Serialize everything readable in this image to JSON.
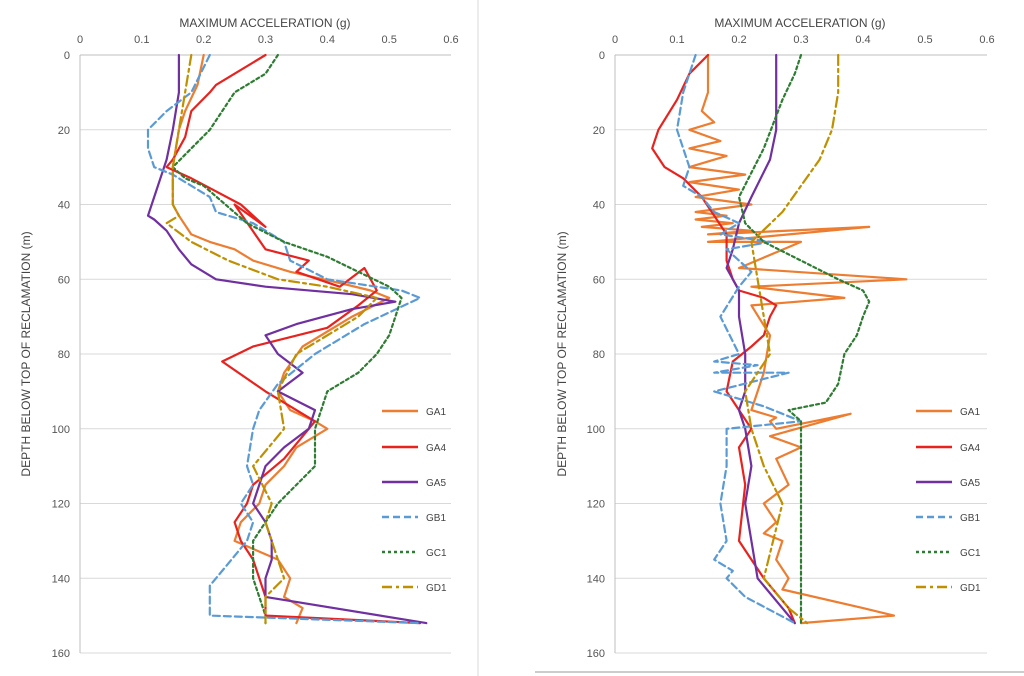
{
  "chart_data": [
    {
      "type": "line",
      "orientation": "depth-profile",
      "xlabel": "MAXIMUM ACCELERATION (g)",
      "ylabel": "DEPTH BELOW TOP OF RECLAMATION (m)",
      "xlim": [
        0,
        0.6
      ],
      "ylim": [
        0,
        160
      ],
      "y_inverted": true,
      "x_axis_position": "top",
      "grid": "horizontal",
      "xticks": [
        "0",
        "0.1",
        "0.2",
        "0.3",
        "0.4",
        "0.5",
        "0.6"
      ],
      "yticks": [
        "0",
        "20",
        "40",
        "60",
        "80",
        "100",
        "120",
        "140",
        "160"
      ],
      "legend_position": "bottom-right",
      "series": [
        {
          "name": "GA1",
          "color": "#ED7D31",
          "dash": "solid",
          "x": [
            0.2,
            0.19,
            0.17,
            0.16,
            0.15,
            0.15,
            0.16,
            0.18,
            0.21,
            0.25,
            0.28,
            0.34,
            0.42,
            0.47,
            0.5,
            0.44,
            0.36,
            0.33,
            0.32,
            0.34,
            0.38,
            0.4,
            0.35,
            0.33,
            0.3,
            0.29,
            0.26,
            0.25,
            0.32,
            0.34,
            0.33,
            0.36,
            0.35
          ],
          "y": [
            0,
            8,
            15,
            20,
            30,
            40,
            43,
            48,
            50,
            52,
            55,
            58,
            61,
            63,
            65,
            70,
            78,
            85,
            90,
            95,
            98,
            100,
            105,
            110,
            115,
            120,
            125,
            130,
            135,
            140,
            145,
            148,
            152
          ]
        },
        {
          "name": "GA4",
          "color": "#E8231F",
          "dash": "solid",
          "x": [
            0.3,
            0.25,
            0.22,
            0.21,
            0.18,
            0.17,
            0.15,
            0.14,
            0.18,
            0.26,
            0.3,
            0.25,
            0.3,
            0.37,
            0.35,
            0.42,
            0.46,
            0.48,
            0.45,
            0.4,
            0.28,
            0.23,
            0.3,
            0.38,
            0.33,
            0.28,
            0.27,
            0.25,
            0.26,
            0.28,
            0.29,
            0.3,
            0.3,
            0.55
          ],
          "y": [
            0,
            5,
            8,
            10,
            15,
            22,
            28,
            30,
            33,
            40,
            46,
            40,
            52,
            55,
            58,
            62,
            57,
            63,
            67,
            73,
            78,
            82,
            90,
            98,
            108,
            115,
            120,
            125,
            130,
            135,
            140,
            145,
            150,
            152
          ]
        },
        {
          "name": "GA5",
          "color": "#7030A0",
          "dash": "solid",
          "x": [
            0.16,
            0.16,
            0.15,
            0.14,
            0.13,
            0.12,
            0.11,
            0.12,
            0.14,
            0.16,
            0.18,
            0.22,
            0.3,
            0.44,
            0.51,
            0.44,
            0.35,
            0.3,
            0.32,
            0.36,
            0.32,
            0.38,
            0.37,
            0.33,
            0.3,
            0.28,
            0.3,
            0.31,
            0.31,
            0.3,
            0.3,
            0.56
          ],
          "y": [
            0,
            10,
            20,
            28,
            33,
            38,
            43,
            44,
            47,
            52,
            56,
            60,
            62,
            64,
            66,
            68,
            72,
            75,
            80,
            85,
            90,
            95,
            100,
            105,
            110,
            120,
            125,
            130,
            135,
            140,
            145,
            152
          ]
        },
        {
          "name": "GB1",
          "color": "#5B9BD5",
          "dash": "dash",
          "x": [
            0.21,
            0.18,
            0.14,
            0.11,
            0.11,
            0.12,
            0.15,
            0.18,
            0.21,
            0.22,
            0.28,
            0.33,
            0.34,
            0.4,
            0.52,
            0.55,
            0.46,
            0.38,
            0.32,
            0.29,
            0.28,
            0.27,
            0.28,
            0.26,
            0.28,
            0.27,
            0.22,
            0.21,
            0.21,
            0.55
          ],
          "y": [
            0,
            10,
            15,
            20,
            25,
            30,
            32,
            35,
            38,
            42,
            45,
            50,
            55,
            60,
            63,
            65,
            72,
            80,
            88,
            95,
            100,
            110,
            115,
            120,
            125,
            130,
            140,
            142,
            150,
            152
          ]
        },
        {
          "name": "GC1",
          "color": "#2E7D32",
          "dash": "dot",
          "x": [
            0.32,
            0.3,
            0.25,
            0.23,
            0.21,
            0.18,
            0.15,
            0.17,
            0.2,
            0.27,
            0.33,
            0.4,
            0.45,
            0.5,
            0.52,
            0.51,
            0.5,
            0.48,
            0.45,
            0.4,
            0.38,
            0.38,
            0.32,
            0.28,
            0.28,
            0.3,
            0.3
          ],
          "y": [
            0,
            5,
            10,
            15,
            20,
            25,
            30,
            33,
            35,
            45,
            50,
            54,
            58,
            62,
            65,
            70,
            75,
            80,
            85,
            90,
            100,
            110,
            120,
            130,
            140,
            150,
            152
          ]
        },
        {
          "name": "GD1",
          "color": "#BF9000",
          "dash": "dashdot",
          "x": [
            0.18,
            0.17,
            0.16,
            0.15,
            0.15,
            0.16,
            0.14,
            0.18,
            0.24,
            0.32,
            0.4,
            0.48,
            0.45,
            0.35,
            0.32,
            0.33,
            0.28,
            0.31,
            0.3,
            0.31,
            0.33,
            0.3,
            0.3
          ],
          "y": [
            0,
            10,
            20,
            30,
            40,
            43,
            45,
            50,
            55,
            60,
            62,
            65,
            70,
            80,
            90,
            100,
            110,
            120,
            125,
            130,
            140,
            145,
            152
          ]
        }
      ]
    },
    {
      "type": "line",
      "orientation": "depth-profile",
      "xlabel": "MAXIMUM ACCELERATION (g)",
      "ylabel": "DEPTH BELOW TOP OF RECLAMATION (m)",
      "xlim": [
        0,
        0.6
      ],
      "ylim": [
        0,
        160
      ],
      "y_inverted": true,
      "x_axis_position": "top",
      "grid": "horizontal",
      "xticks": [
        "0",
        "0.1",
        "0.2",
        "0.3",
        "0.4",
        "0.5",
        "0.6"
      ],
      "yticks": [
        "0",
        "20",
        "40",
        "60",
        "80",
        "100",
        "120",
        "140",
        "160"
      ],
      "legend_position": "bottom-right",
      "series": [
        {
          "name": "GA1",
          "color": "#ED7D31",
          "dash": "solid",
          "x": [
            0.15,
            0.15,
            0.14,
            0.16,
            0.12,
            0.17,
            0.12,
            0.18,
            0.12,
            0.21,
            0.12,
            0.2,
            0.13,
            0.22,
            0.13,
            0.18,
            0.13,
            0.19,
            0.14,
            0.22,
            0.15,
            0.41,
            0.15,
            0.3,
            0.2,
            0.47,
            0.22,
            0.37,
            0.22,
            0.25,
            0.24,
            0.22,
            0.26,
            0.25,
            0.26,
            0.38,
            0.25,
            0.3,
            0.26,
            0.28,
            0.24,
            0.26,
            0.24,
            0.27,
            0.26,
            0.28,
            0.27,
            0.4,
            0.45,
            0.3
          ],
          "y": [
            0,
            10,
            15,
            18,
            20,
            23,
            25,
            27,
            30,
            32,
            34,
            36,
            38,
            40,
            42,
            43,
            44,
            45,
            46,
            47,
            48,
            46,
            50,
            50,
            57,
            60,
            62,
            65,
            67,
            75,
            85,
            95,
            97,
            98,
            100,
            96,
            102,
            105,
            108,
            115,
            120,
            125,
            128,
            130,
            135,
            140,
            143,
            148,
            150,
            152
          ]
        },
        {
          "name": "GA4",
          "color": "#E8231F",
          "dash": "solid",
          "x": [
            0.15,
            0.12,
            0.1,
            0.07,
            0.06,
            0.08,
            0.11,
            0.14,
            0.16,
            0.18,
            0.18,
            0.19,
            0.2,
            0.24,
            0.26,
            0.25,
            0.24,
            0.22,
            0.19,
            0.18,
            0.2,
            0.22,
            0.2,
            0.21,
            0.2,
            0.24,
            0.28,
            0.29
          ],
          "y": [
            0,
            5,
            12,
            20,
            25,
            30,
            33,
            38,
            43,
            48,
            55,
            60,
            63,
            65,
            67,
            70,
            75,
            78,
            82,
            90,
            95,
            100,
            105,
            115,
            130,
            140,
            148,
            152
          ]
        },
        {
          "name": "GA5",
          "color": "#7030A0",
          "dash": "solid",
          "x": [
            0.26,
            0.26,
            0.26,
            0.25,
            0.22,
            0.2,
            0.19,
            0.18,
            0.2,
            0.2,
            0.21,
            0.21,
            0.2,
            0.21,
            0.22,
            0.21,
            0.22,
            0.23,
            0.29
          ],
          "y": [
            0,
            10,
            20,
            28,
            38,
            45,
            52,
            57,
            63,
            70,
            80,
            90,
            95,
            100,
            110,
            120,
            130,
            140,
            152
          ]
        },
        {
          "name": "GB1",
          "color": "#5B9BD5",
          "dash": "dash",
          "x": [
            0.13,
            0.11,
            0.1,
            0.12,
            0.11,
            0.14,
            0.16,
            0.2,
            0.17,
            0.25,
            0.18,
            0.22,
            0.2,
            0.17,
            0.2,
            0.16,
            0.23,
            0.16,
            0.28,
            0.16,
            0.24,
            0.3,
            0.18,
            0.18,
            0.17,
            0.18,
            0.16,
            0.19,
            0.18,
            0.21,
            0.29
          ],
          "y": [
            0,
            10,
            20,
            30,
            35,
            38,
            42,
            45,
            48,
            50,
            52,
            58,
            62,
            70,
            80,
            82,
            83,
            85,
            85,
            90,
            94,
            98,
            100,
            110,
            120,
            130,
            135,
            138,
            140,
            145,
            152
          ]
        },
        {
          "name": "GC1",
          "color": "#2E7D32",
          "dash": "dot",
          "x": [
            0.3,
            0.29,
            0.27,
            0.24,
            0.2,
            0.21,
            0.24,
            0.3,
            0.36,
            0.4,
            0.41,
            0.4,
            0.39,
            0.37,
            0.36,
            0.34,
            0.28,
            0.3,
            0.3,
            0.3,
            0.3,
            0.3
          ],
          "y": [
            0,
            5,
            12,
            25,
            38,
            45,
            50,
            55,
            60,
            63,
            66,
            70,
            75,
            80,
            88,
            93,
            95,
            98,
            100,
            110,
            140,
            152
          ]
        },
        {
          "name": "GD1",
          "color": "#BF9000",
          "dash": "dashdot",
          "x": [
            0.36,
            0.36,
            0.35,
            0.33,
            0.3,
            0.27,
            0.22,
            0.23,
            0.24,
            0.25,
            0.21,
            0.22,
            0.24,
            0.27,
            0.24,
            0.28,
            0.31
          ],
          "y": [
            0,
            10,
            20,
            28,
            35,
            42,
            50,
            60,
            70,
            80,
            90,
            100,
            110,
            120,
            140,
            148,
            152
          ]
        }
      ]
    }
  ]
}
